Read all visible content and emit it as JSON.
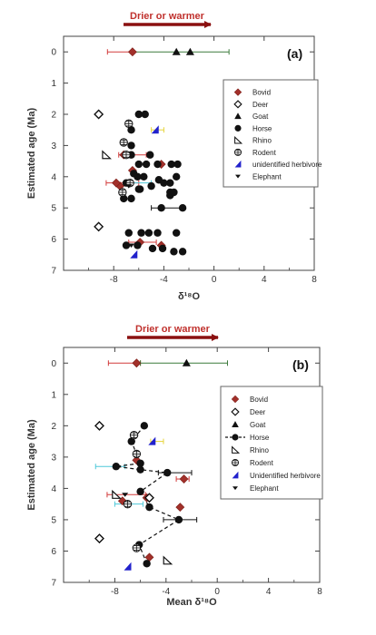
{
  "colors": {
    "bovid": "#a2302a",
    "arrow": "#8b1010",
    "drier_text": "#c0312d",
    "herbivore_text": "#2a28c8",
    "errorbar_red": "#d23a3a",
    "errorbar_green": "#3a7a3a",
    "errorbar_cyan": "#4ec8d8",
    "errorbar_yellow": "#e6d43a",
    "blue_marker": "#2222cc"
  },
  "chart_data": [
    {
      "type": "scatter",
      "panel_label": "(a)",
      "arrow_text": "Drier or warmer",
      "xlabel": "δ¹⁸O",
      "ylabel": "Estimated age (Ma)",
      "xlim": [
        -12,
        8
      ],
      "ylim": [
        7,
        -0.5
      ],
      "x_ticks": [
        -8,
        -4,
        0,
        4,
        8
      ],
      "y_ticks": [
        0,
        1,
        2,
        3,
        4,
        5,
        6,
        7
      ],
      "legend_position": "upper-right",
      "legend": [
        {
          "name": "Bovid",
          "marker": "diamond-filled"
        },
        {
          "name": "Deer",
          "marker": "diamond-open"
        },
        {
          "name": "Goat",
          "marker": "triangle"
        },
        {
          "name": "Horse",
          "marker": "circle"
        },
        {
          "name": "Rhino",
          "marker": "rhino"
        },
        {
          "name": "Rodent",
          "marker": "rodent"
        },
        {
          "name": "unidentified herbivore",
          "marker": "flag"
        },
        {
          "name": "Elephant",
          "marker": "elephant"
        }
      ],
      "errorbars": [
        {
          "y": 0.0,
          "x1": -8.5,
          "x2": -6.5,
          "color": "red"
        },
        {
          "y": 0.0,
          "x1": -6.5,
          "x2": 1.2,
          "color": "green"
        },
        {
          "y": 3.3,
          "x1": -7.6,
          "x2": -5.4,
          "color": "red"
        },
        {
          "y": 4.2,
          "x1": -8.6,
          "x2": -6.0,
          "color": "red"
        },
        {
          "y": 4.2,
          "x1": -7.0,
          "x2": -5.0,
          "color": "cyan"
        },
        {
          "y": 5.0,
          "x1": -5.0,
          "x2": -2.5,
          "color": "black"
        },
        {
          "y": 2.5,
          "x1": -5.0,
          "x2": -4.0,
          "color": "yellow"
        },
        {
          "y": 6.1,
          "x1": -6.8,
          "x2": -4.6,
          "color": "red"
        }
      ],
      "series": [
        {
          "name": "Bovid",
          "marker": "diamond-filled",
          "x": [
            -6.5,
            -7.2,
            -7.5,
            -4.2,
            -7.8,
            -6.5,
            -5.9,
            -4.2
          ],
          "y": [
            0.0,
            3.3,
            4.3,
            3.6,
            4.2,
            3.8,
            6.1,
            6.2
          ]
        },
        {
          "name": "Deer",
          "marker": "diamond-open",
          "x": [
            -9.2,
            -9.2
          ],
          "y": [
            2.0,
            5.6
          ]
        },
        {
          "name": "Goat",
          "marker": "triangle",
          "x": [
            -3.0,
            -1.9
          ],
          "y": [
            0.0,
            0.0
          ]
        },
        {
          "name": "Horse",
          "marker": "circle",
          "x": [
            -6.0,
            -5.5,
            -6.6,
            -6.6,
            -6.6,
            -6.0,
            -5.4,
            -5.1,
            -4.5,
            -3.4,
            -2.9,
            -6.4,
            -6.1,
            -5.6,
            -5.9,
            -4.4,
            -3.5,
            -3.0,
            -7.0,
            -6.0,
            -5.0,
            -4.0,
            -3.5,
            -3.5,
            -2.5,
            -7.2,
            -6.6,
            -4.2,
            -3.2,
            -6.8,
            -5.8,
            -5.2,
            -4.5,
            -3.0,
            -7.0,
            -6.1,
            -4.9,
            -4.1,
            -3.2,
            -2.5
          ],
          "y": [
            2.0,
            2.0,
            2.5,
            3.0,
            3.3,
            3.6,
            3.6,
            3.3,
            3.6,
            3.6,
            3.6,
            3.9,
            4.0,
            4.0,
            4.4,
            4.1,
            4.2,
            4.0,
            4.2,
            4.4,
            4.3,
            4.2,
            4.5,
            4.6,
            5.0,
            4.7,
            4.7,
            5.0,
            4.5,
            5.8,
            5.8,
            5.8,
            5.8,
            5.8,
            6.2,
            6.2,
            6.3,
            6.3,
            6.4,
            6.4
          ]
        },
        {
          "name": "Rhino",
          "marker": "rhino",
          "x": [
            -8.6
          ],
          "y": [
            3.3
          ]
        },
        {
          "name": "Rodent",
          "marker": "rodent",
          "x": [
            -6.8,
            -7.2,
            -7.0,
            -6.7,
            -7.3
          ],
          "y": [
            2.3,
            2.9,
            3.3,
            4.2,
            4.5
          ]
        },
        {
          "name": "unidentified herbivore",
          "marker": "flag",
          "x": [
            -4.7,
            -6.4
          ],
          "y": [
            2.5,
            6.5
          ]
        },
        {
          "name": "Elephant",
          "marker": "elephant",
          "x": [
            -6.8,
            -6.6
          ],
          "y": [
            4.3,
            6.2
          ]
        }
      ]
    },
    {
      "type": "scatter",
      "panel_label": "(b)",
      "arrow_text": "Drier or warmer",
      "xlabel": "Mean δ¹⁸O",
      "ylabel": "Estimated age (Ma)",
      "xlim": [
        -12,
        8
      ],
      "ylim": [
        7,
        -0.5
      ],
      "x_ticks": [
        -8,
        -4,
        0,
        4,
        8
      ],
      "y_ticks": [
        0,
        1,
        2,
        3,
        4,
        5,
        6,
        7
      ],
      "legend_position": "upper-right",
      "legend": [
        {
          "name": "Bovid",
          "marker": "diamond-filled"
        },
        {
          "name": "Deer",
          "marker": "diamond-open"
        },
        {
          "name": "Goat",
          "marker": "triangle"
        },
        {
          "name": "Horse",
          "marker": "circle-line"
        },
        {
          "name": "Rhino",
          "marker": "rhino"
        },
        {
          "name": "Rodent",
          "marker": "rodent"
        },
        {
          "name": "Unidentified herbivore",
          "marker": "flag"
        },
        {
          "name": "Elephant",
          "marker": "elephant"
        }
      ],
      "errorbars": [
        {
          "y": 0.0,
          "x1": -8.5,
          "x2": -6.0,
          "color": "red"
        },
        {
          "y": 0.0,
          "x1": -6.0,
          "x2": 0.8,
          "color": "green"
        },
        {
          "y": 3.3,
          "x1": -9.5,
          "x2": -7.2,
          "color": "cyan"
        },
        {
          "y": 3.5,
          "x1": -4.6,
          "x2": -2.0,
          "color": "black"
        },
        {
          "y": 3.7,
          "x1": -3.2,
          "x2": -2.2,
          "color": "red"
        },
        {
          "y": 4.2,
          "x1": -8.6,
          "x2": -5.6,
          "color": "red"
        },
        {
          "y": 4.5,
          "x1": -8.0,
          "x2": -5.8,
          "color": "cyan"
        },
        {
          "y": 5.0,
          "x1": -4.2,
          "x2": -1.6,
          "color": "black"
        },
        {
          "y": 2.5,
          "x1": -5.2,
          "x2": -4.2,
          "color": "yellow"
        }
      ],
      "series": [
        {
          "name": "Bovid",
          "marker": "diamond-filled",
          "x": [
            -6.3,
            -6.3,
            -7.4,
            -2.6,
            -5.5,
            -2.9,
            -5.3
          ],
          "y": [
            0.0,
            3.1,
            4.4,
            3.7,
            4.3,
            4.6,
            6.2
          ]
        },
        {
          "name": "Deer",
          "marker": "diamond-open",
          "x": [
            -9.2,
            -9.2,
            -5.3
          ],
          "y": [
            2.0,
            5.6,
            4.3
          ]
        },
        {
          "name": "Goat",
          "marker": "triangle",
          "x": [
            -2.4
          ],
          "y": [
            0.0
          ]
        },
        {
          "name": "Horse",
          "marker": "circle-line",
          "x": [
            -5.7,
            -6.7,
            -6.0,
            -7.9,
            -6.0,
            -3.9,
            -6.0,
            -5.3,
            -3.0,
            -6.1,
            -5.5
          ],
          "y": [
            2.0,
            2.5,
            3.2,
            3.3,
            3.4,
            3.5,
            4.1,
            4.6,
            5.0,
            5.8,
            6.4
          ]
        },
        {
          "name": "Rhino",
          "marker": "rhino",
          "x": [
            -7.9,
            -3.9
          ],
          "y": [
            4.2,
            6.3
          ]
        },
        {
          "name": "Rodent",
          "marker": "rodent",
          "x": [
            -6.5,
            -6.3,
            -7.0,
            -6.3
          ],
          "y": [
            2.3,
            2.9,
            4.5,
            5.9
          ]
        },
        {
          "name": "Unidentified herbivore",
          "marker": "flag",
          "x": [
            -5.1,
            -7.0
          ],
          "y": [
            2.5,
            6.5
          ]
        },
        {
          "name": "Elephant",
          "marker": "elephant",
          "x": [
            -7.2
          ],
          "y": [
            4.2
          ]
        }
      ]
    }
  ]
}
